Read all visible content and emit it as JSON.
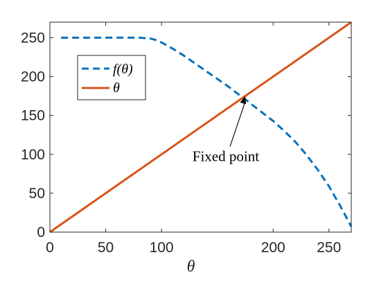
{
  "chart_data": {
    "type": "line",
    "xlabel": "θ",
    "ylabel": "",
    "xlim": [
      0,
      270
    ],
    "ylim": [
      0,
      270
    ],
    "x_ticks": [
      0,
      50,
      100,
      200,
      250
    ],
    "x_tick_labels": [
      "0",
      "50",
      "100",
      "200",
      "250"
    ],
    "y_ticks": [
      0,
      50,
      100,
      150,
      200,
      250
    ],
    "y_tick_labels": [
      "0",
      "50",
      "100",
      "150",
      "200",
      "250"
    ],
    "grid": false,
    "legend_position": "upper-left",
    "series": [
      {
        "name": "f(θ)",
        "style": "dashed",
        "color": "#0072BD",
        "x": [
          10,
          30,
          60,
          80,
          90,
          95,
          100,
          110,
          120,
          130,
          140,
          150,
          160,
          170,
          175,
          180,
          190,
          200,
          210,
          220,
          230,
          240,
          250,
          260,
          270
        ],
        "y": [
          250,
          250,
          250,
          250,
          249,
          247,
          244,
          236,
          227,
          217,
          207,
          197,
          187,
          176,
          171,
          165,
          154,
          143,
          130,
          116,
          99,
          80,
          59,
          34,
          7
        ]
      },
      {
        "name": "θ",
        "style": "solid",
        "color": "#D95319",
        "x": [
          0,
          270
        ],
        "y": [
          0,
          270
        ]
      }
    ],
    "annotation": {
      "text": "Fixed point",
      "x": 175,
      "y": 175
    }
  }
}
